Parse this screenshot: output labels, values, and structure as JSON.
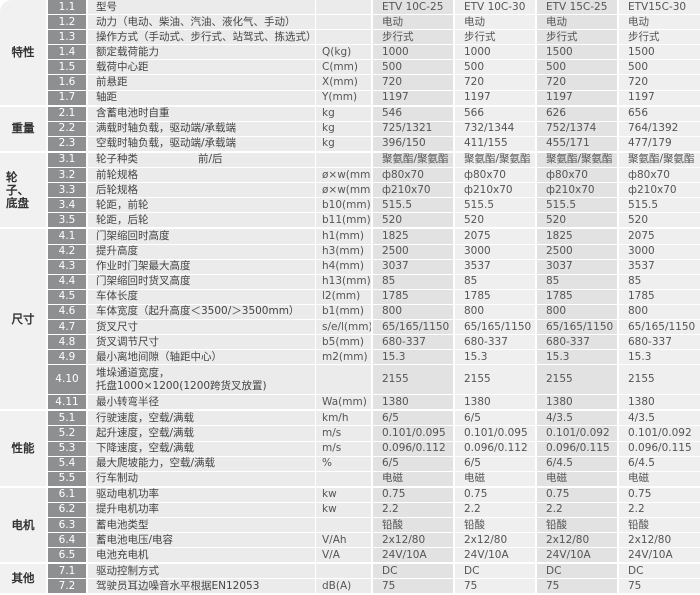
{
  "sections": [
    {
      "label": "特性",
      "rows": [
        {
          "no": "1.1",
          "desc": "型号",
          "unit": "",
          "values": [
            "ETV 10C-25",
            "ETV 10C-30",
            "ETV 15C-25",
            "ETV15C-30"
          ]
        },
        {
          "no": "1.2",
          "desc": "动力（电动、柴油、汽油、液化气、手动）",
          "unit": "",
          "values": [
            "电动",
            "电动",
            "电动",
            "电动"
          ]
        },
        {
          "no": "1.3",
          "desc": "操作方式（手动式、步行式、站驾式、拣选式）",
          "unit": "",
          "values": [
            "步行式",
            "步行式",
            "步行式",
            "步行式"
          ]
        },
        {
          "no": "1.4",
          "desc": "额定载荷能力",
          "unit": "Q(kg)",
          "values": [
            "1000",
            "1000",
            "1500",
            "1500"
          ]
        },
        {
          "no": "1.5",
          "desc": "载荷中心距",
          "unit": "C(mm)",
          "values": [
            "500",
            "500",
            "500",
            "500"
          ]
        },
        {
          "no": "1.6",
          "desc": "前悬距",
          "unit": "X(mm)",
          "values": [
            "720",
            "720",
            "720",
            "720"
          ]
        },
        {
          "no": "1.7",
          "desc": "轴距",
          "unit": "Y(mm)",
          "values": [
            "1197",
            "1197",
            "1197",
            "1197"
          ]
        }
      ]
    },
    {
      "label": "重量",
      "rows": [
        {
          "no": "2.1",
          "desc": "含蓄电池时自重",
          "unit": "kg",
          "values": [
            "546",
            "566",
            "626",
            "656"
          ]
        },
        {
          "no": "2.2",
          "desc": "满载时轴负载，驱动端/承载端",
          "unit": "kg",
          "values": [
            "725/1321",
            "732/1344",
            "752/1374",
            "764/1392"
          ]
        },
        {
          "no": "2.3",
          "desc": "空载时轴负载，驱动端/承载端",
          "unit": "kg",
          "values": [
            "396/150",
            "411/155",
            "455/171",
            "477/179"
          ]
        }
      ]
    },
    {
      "label": "轮子、底盘",
      "rows": [
        {
          "no": "3.1",
          "desc": "轮子种类",
          "desc_suffix": "前/后",
          "unit": "",
          "values": [
            "聚氨酯/聚氨酯",
            "聚氨酯/聚氨酯",
            "聚氨酯/聚氨酯",
            "聚氨酯/聚氨酯"
          ]
        },
        {
          "no": "3.2",
          "desc": "前轮规格",
          "unit": "ø×w(mm)",
          "values": [
            "ф80x70",
            "ф80x70",
            "ф80x70",
            "ф80x70"
          ]
        },
        {
          "no": "3.3",
          "desc": "后轮规格",
          "unit": "ø×w(mm)",
          "values": [
            "ф210x70",
            "ф210x70",
            "ф210x70",
            "ф210x70"
          ]
        },
        {
          "no": "3.4",
          "desc": "轮距，前轮",
          "unit": "b10(mm)",
          "values": [
            "515.5",
            "515.5",
            "515.5",
            "515.5"
          ]
        },
        {
          "no": "3.5",
          "desc": "轮距，后轮",
          "unit": "b11(mm)",
          "values": [
            "520",
            "520",
            "520",
            "520"
          ]
        }
      ]
    },
    {
      "label": "尺寸",
      "rows": [
        {
          "no": "4.1",
          "desc": "门架缩回时高度",
          "unit": "h1(mm)",
          "values": [
            "1825",
            "2075",
            "1825",
            "2075"
          ]
        },
        {
          "no": "4.2",
          "desc": "提升高度",
          "unit": "h3(mm)",
          "values": [
            "2500",
            "3000",
            "2500",
            "3000"
          ]
        },
        {
          "no": "4.3",
          "desc": "作业时门架最大高度",
          "unit": "h4(mm)",
          "values": [
            "3037",
            "3537",
            "3037",
            "3537"
          ]
        },
        {
          "no": "4.4",
          "desc": "门架缩回时货叉高度",
          "unit": "h13(mm)",
          "values": [
            "85",
            "85",
            "85",
            "85"
          ]
        },
        {
          "no": "4.5",
          "desc": "车体长度",
          "unit": "l2(mm)",
          "values": [
            "1785",
            "1785",
            "1785",
            "1785"
          ]
        },
        {
          "no": "4.6",
          "desc": "车体宽度（起升高度＜3500/＞3500mm）",
          "unit": "b1(mm)",
          "values": [
            "800",
            "800",
            "800",
            "800"
          ]
        },
        {
          "no": "4.7",
          "desc": "货叉尺寸",
          "unit": "s/e/l(mm)",
          "values": [
            "65/165/1150",
            "65/165/1150",
            "65/165/1150",
            "65/165/1150"
          ]
        },
        {
          "no": "4.8",
          "desc": "货叉调节尺寸",
          "unit": "b5(mm)",
          "values": [
            "680-337",
            "680-337",
            "680-337",
            "680-337"
          ]
        },
        {
          "no": "4.9",
          "desc": "最小离地间隙（轴距中心）",
          "unit": "m2(mm)",
          "values": [
            "15.3",
            "15.3",
            "15.3",
            "15.3"
          ]
        },
        {
          "no": "4.10",
          "desc": "堆垛通道宽度，",
          "desc_line2": "托盘1000×1200(1200跨货叉放置)",
          "unit": "",
          "values": [
            "2155",
            "2155",
            "2155",
            "2155"
          ]
        },
        {
          "no": "4.11",
          "desc": "最小转弯半径",
          "unit": "Wa(mm)",
          "values": [
            "1380",
            "1380",
            "1380",
            "1380"
          ]
        }
      ]
    },
    {
      "label": "性能",
      "rows": [
        {
          "no": "5.1",
          "desc": "行驶速度，空载/满载",
          "unit": "km/h",
          "values": [
            "6/5",
            "6/5",
            "4/3.5",
            "4/3.5"
          ]
        },
        {
          "no": "5.2",
          "desc": "起升速度，空载/满载",
          "unit": "m/s",
          "values": [
            "0.101/0.095",
            "0.101/0.095",
            "0.101/0.092",
            "0.101/0.092"
          ]
        },
        {
          "no": "5.3",
          "desc": "下降速度，空载/满载",
          "unit": "m/s",
          "values": [
            "0.096/0.112",
            "0.096/0.112",
            "0.096/0.115",
            "0.096/0.115"
          ]
        },
        {
          "no": "5.4",
          "desc": "最大爬坡能力，空载/满载",
          "unit": "%",
          "values": [
            "6/5",
            "6/5",
            "6/4.5",
            "6/4.5"
          ]
        },
        {
          "no": "5.5",
          "desc": "行车制动",
          "unit": "",
          "values": [
            "电磁",
            "电磁",
            "电磁",
            "电磁"
          ]
        }
      ]
    },
    {
      "label": "电机",
      "rows": [
        {
          "no": "6.1",
          "desc": "驱动电机功率",
          "unit": "kw",
          "values": [
            "0.75",
            "0.75",
            "0.75",
            "0.75"
          ]
        },
        {
          "no": "6.2",
          "desc": "提升电机功率",
          "unit": "kw",
          "values": [
            "2.2",
            "2.2",
            "2.2",
            "2.2"
          ]
        },
        {
          "no": "6.3",
          "desc": "蓄电池类型",
          "unit": "",
          "values": [
            "铅酸",
            "铅酸",
            "铅酸",
            "铅酸"
          ]
        },
        {
          "no": "6.4",
          "desc": "蓄电池电压/电容",
          "unit": "V/Ah",
          "values": [
            "2x12/80",
            "2x12/80",
            "2x12/80",
            "2x12/80"
          ]
        },
        {
          "no": "6.5",
          "desc": "电池充电机",
          "unit": "V/A",
          "values": [
            "24V/10A",
            "24V/10A",
            "24V/10A",
            "24V/10A"
          ]
        }
      ]
    },
    {
      "label": "其他",
      "rows": [
        {
          "no": "7.1",
          "desc": "驱动控制方式",
          "unit": "",
          "values": [
            "DC",
            "DC",
            "DC",
            "DC"
          ]
        },
        {
          "no": "7.2",
          "desc": "驾驶员耳边噪音水平根据EN12053",
          "unit": "dB(A)",
          "values": [
            "75",
            "75",
            "75",
            "75"
          ]
        }
      ]
    }
  ]
}
